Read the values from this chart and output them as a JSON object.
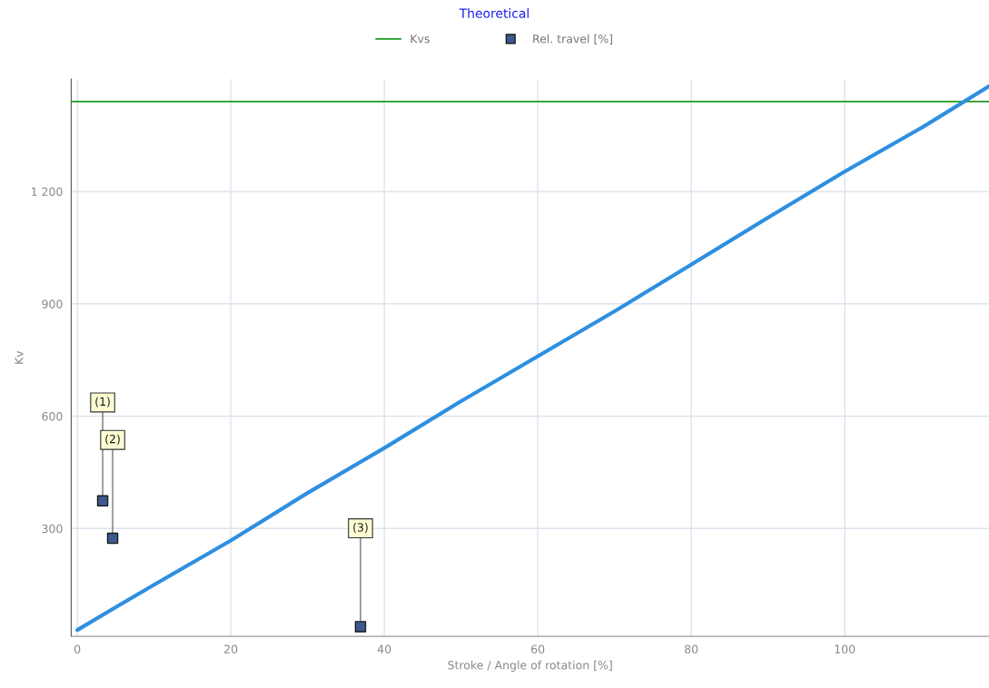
{
  "chart_data": {
    "type": "line",
    "title": "Theoretical",
    "xlabel": "Stroke / Angle of rotation [%]",
    "ylabel": "Kv",
    "xlim": [
      -0.8,
      118.8
    ],
    "ylim": [
      12,
      1500
    ],
    "xticks": [
      0,
      20,
      40,
      60,
      80,
      100
    ],
    "yticks": [
      300,
      600,
      900,
      {
        "value": 1200,
        "label": "1 200"
      }
    ],
    "grid": true,
    "legend": "top",
    "series": [
      {
        "type": "line",
        "name": "Kvs",
        "color": "#1f9a1f",
        "x": [
          -0.8,
          118.8
        ],
        "values": [
          1440,
          1440
        ],
        "marker": "none"
      },
      {
        "type": "scatter",
        "name": "Rel. travel [%]",
        "color": "#3d5a8f",
        "x": [
          3.3,
          4.6,
          36.9
        ],
        "values": [
          374,
          274,
          38
        ],
        "marker": "square"
      },
      {
        "color": "#2e8fe0",
        "x": [
          0,
          5,
          10,
          20,
          30,
          40,
          50,
          60,
          70,
          80,
          90,
          100,
          110,
          118.8
        ],
        "values": [
          29,
          90,
          150,
          268,
          395,
          515,
          640,
          760,
          880,
          1005,
          1130,
          1253,
          1370,
          1481
        ],
        "marker": "none"
      }
    ],
    "annotations": [
      {
        "text": "(1)",
        "x": 3.3,
        "y": 374
      },
      {
        "text": "(2)",
        "x": 4.6,
        "y": 274
      },
      {
        "text": "(3)",
        "x": 36.9,
        "y": 38
      }
    ]
  }
}
